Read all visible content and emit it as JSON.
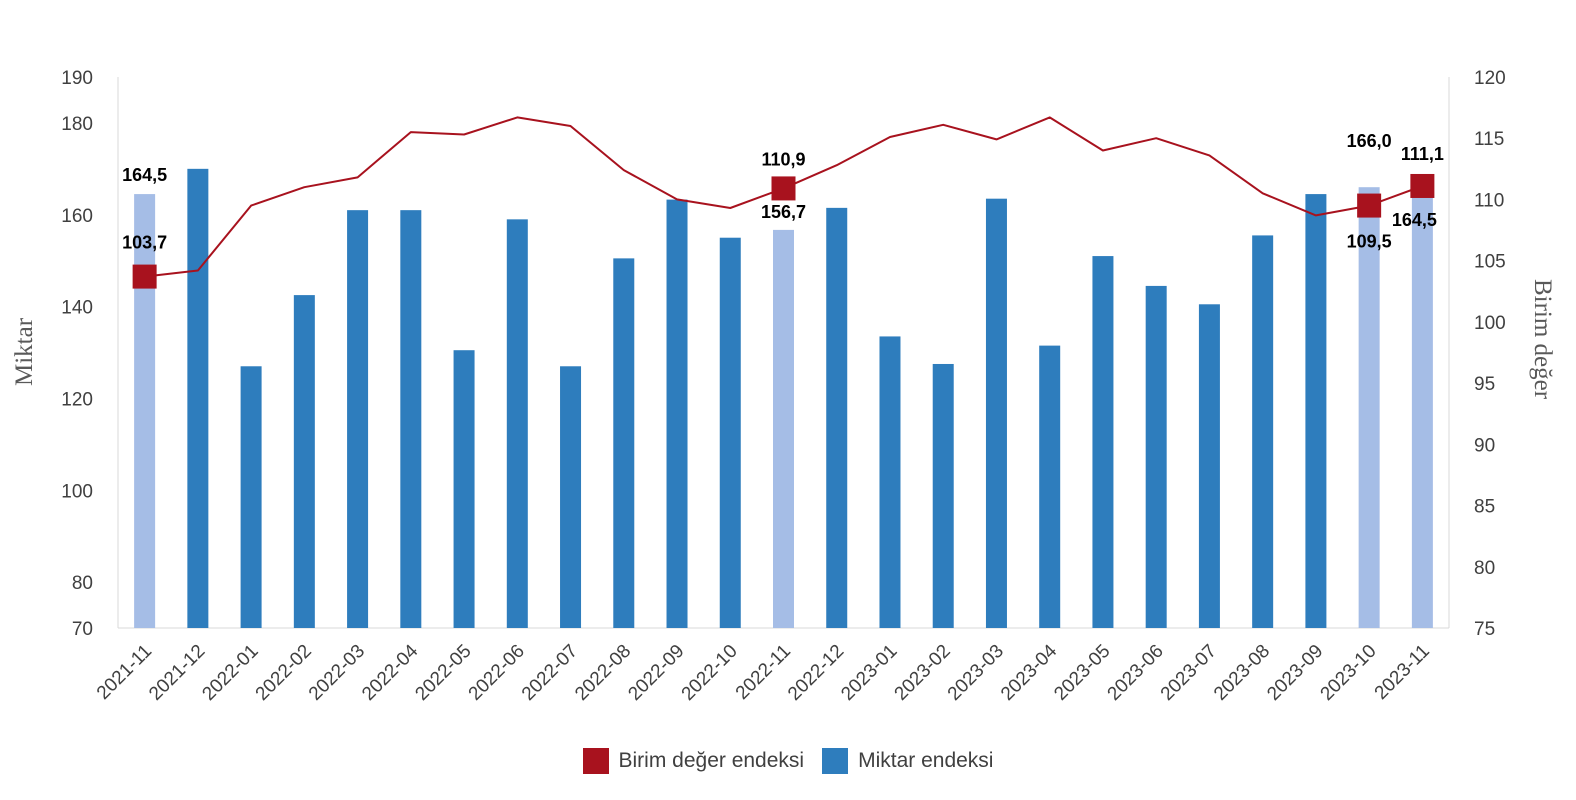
{
  "chart_data": {
    "type": "bar+line",
    "categories": [
      "2021-11",
      "2021-12",
      "2022-01",
      "2022-02",
      "2022-03",
      "2022-04",
      "2022-05",
      "2022-06",
      "2022-07",
      "2022-08",
      "2022-09",
      "2022-10",
      "2022-11",
      "2022-12",
      "2023-01",
      "2023-02",
      "2023-03",
      "2023-04",
      "2023-05",
      "2023-06",
      "2023-07",
      "2023-08",
      "2023-09",
      "2023-10",
      "2023-11"
    ],
    "series": [
      {
        "name": "Miktar endeksi",
        "type": "bar",
        "axis": "left",
        "color": "#2e7dbd",
        "highlight_color": "#a5bde6",
        "highlight_indices": [
          0,
          12,
          23,
          24
        ],
        "values": [
          164.5,
          170.0,
          127.0,
          142.5,
          161.0,
          161.0,
          130.5,
          159.0,
          127.0,
          150.5,
          163.3,
          155.0,
          156.7,
          161.5,
          133.5,
          127.5,
          163.5,
          131.5,
          151.0,
          144.5,
          140.5,
          155.5,
          164.5,
          166.0,
          164.5
        ]
      },
      {
        "name": "Birim değer endeksi",
        "type": "line",
        "axis": "right",
        "color": "#a8121e",
        "marker_indices": [
          0,
          12,
          23,
          24
        ],
        "values": [
          103.7,
          104.2,
          109.5,
          111.0,
          111.8,
          115.5,
          115.3,
          116.7,
          116.0,
          112.4,
          110.0,
          109.3,
          110.9,
          112.8,
          115.1,
          116.1,
          114.9,
          116.7,
          114.0,
          115.0,
          113.6,
          110.5,
          108.7,
          109.5,
          111.1
        ]
      }
    ],
    "data_labels": [
      {
        "index": 0,
        "series": "Miktar endeksi",
        "text": "164,5"
      },
      {
        "index": 0,
        "series": "Birim değer endeksi",
        "text": "103,7"
      },
      {
        "index": 12,
        "series": "Birim değer endeksi",
        "text": "110,9"
      },
      {
        "index": 12,
        "series": "Miktar endeksi",
        "text": "156,7"
      },
      {
        "index": 23,
        "series": "Miktar endeksi",
        "text": "166,0"
      },
      {
        "index": 23,
        "series": "Birim değer endeksi",
        "text": "109,5"
      },
      {
        "index": 24,
        "series": "Birim değer endeksi",
        "text": "111,1"
      },
      {
        "index": 24,
        "series": "Miktar endeksi",
        "text": "164,5"
      }
    ],
    "ylabel": "Miktar",
    "y2label": "Birim değer",
    "ylim": [
      70,
      190
    ],
    "yticks": [
      "70",
      "80",
      "100",
      "120",
      "140",
      "160",
      "180",
      "190"
    ],
    "y2lim": [
      75,
      120
    ],
    "y2ticks": [
      "75",
      "80",
      "85",
      "90",
      "95",
      "100",
      "105",
      "110",
      "115",
      "120"
    ],
    "grid": false,
    "legend_position": "bottom",
    "legend": [
      {
        "label": "Birim değer endeksi",
        "color": "#a8121e"
      },
      {
        "label": "Miktar endeksi",
        "color": "#2e7dbd"
      }
    ]
  }
}
